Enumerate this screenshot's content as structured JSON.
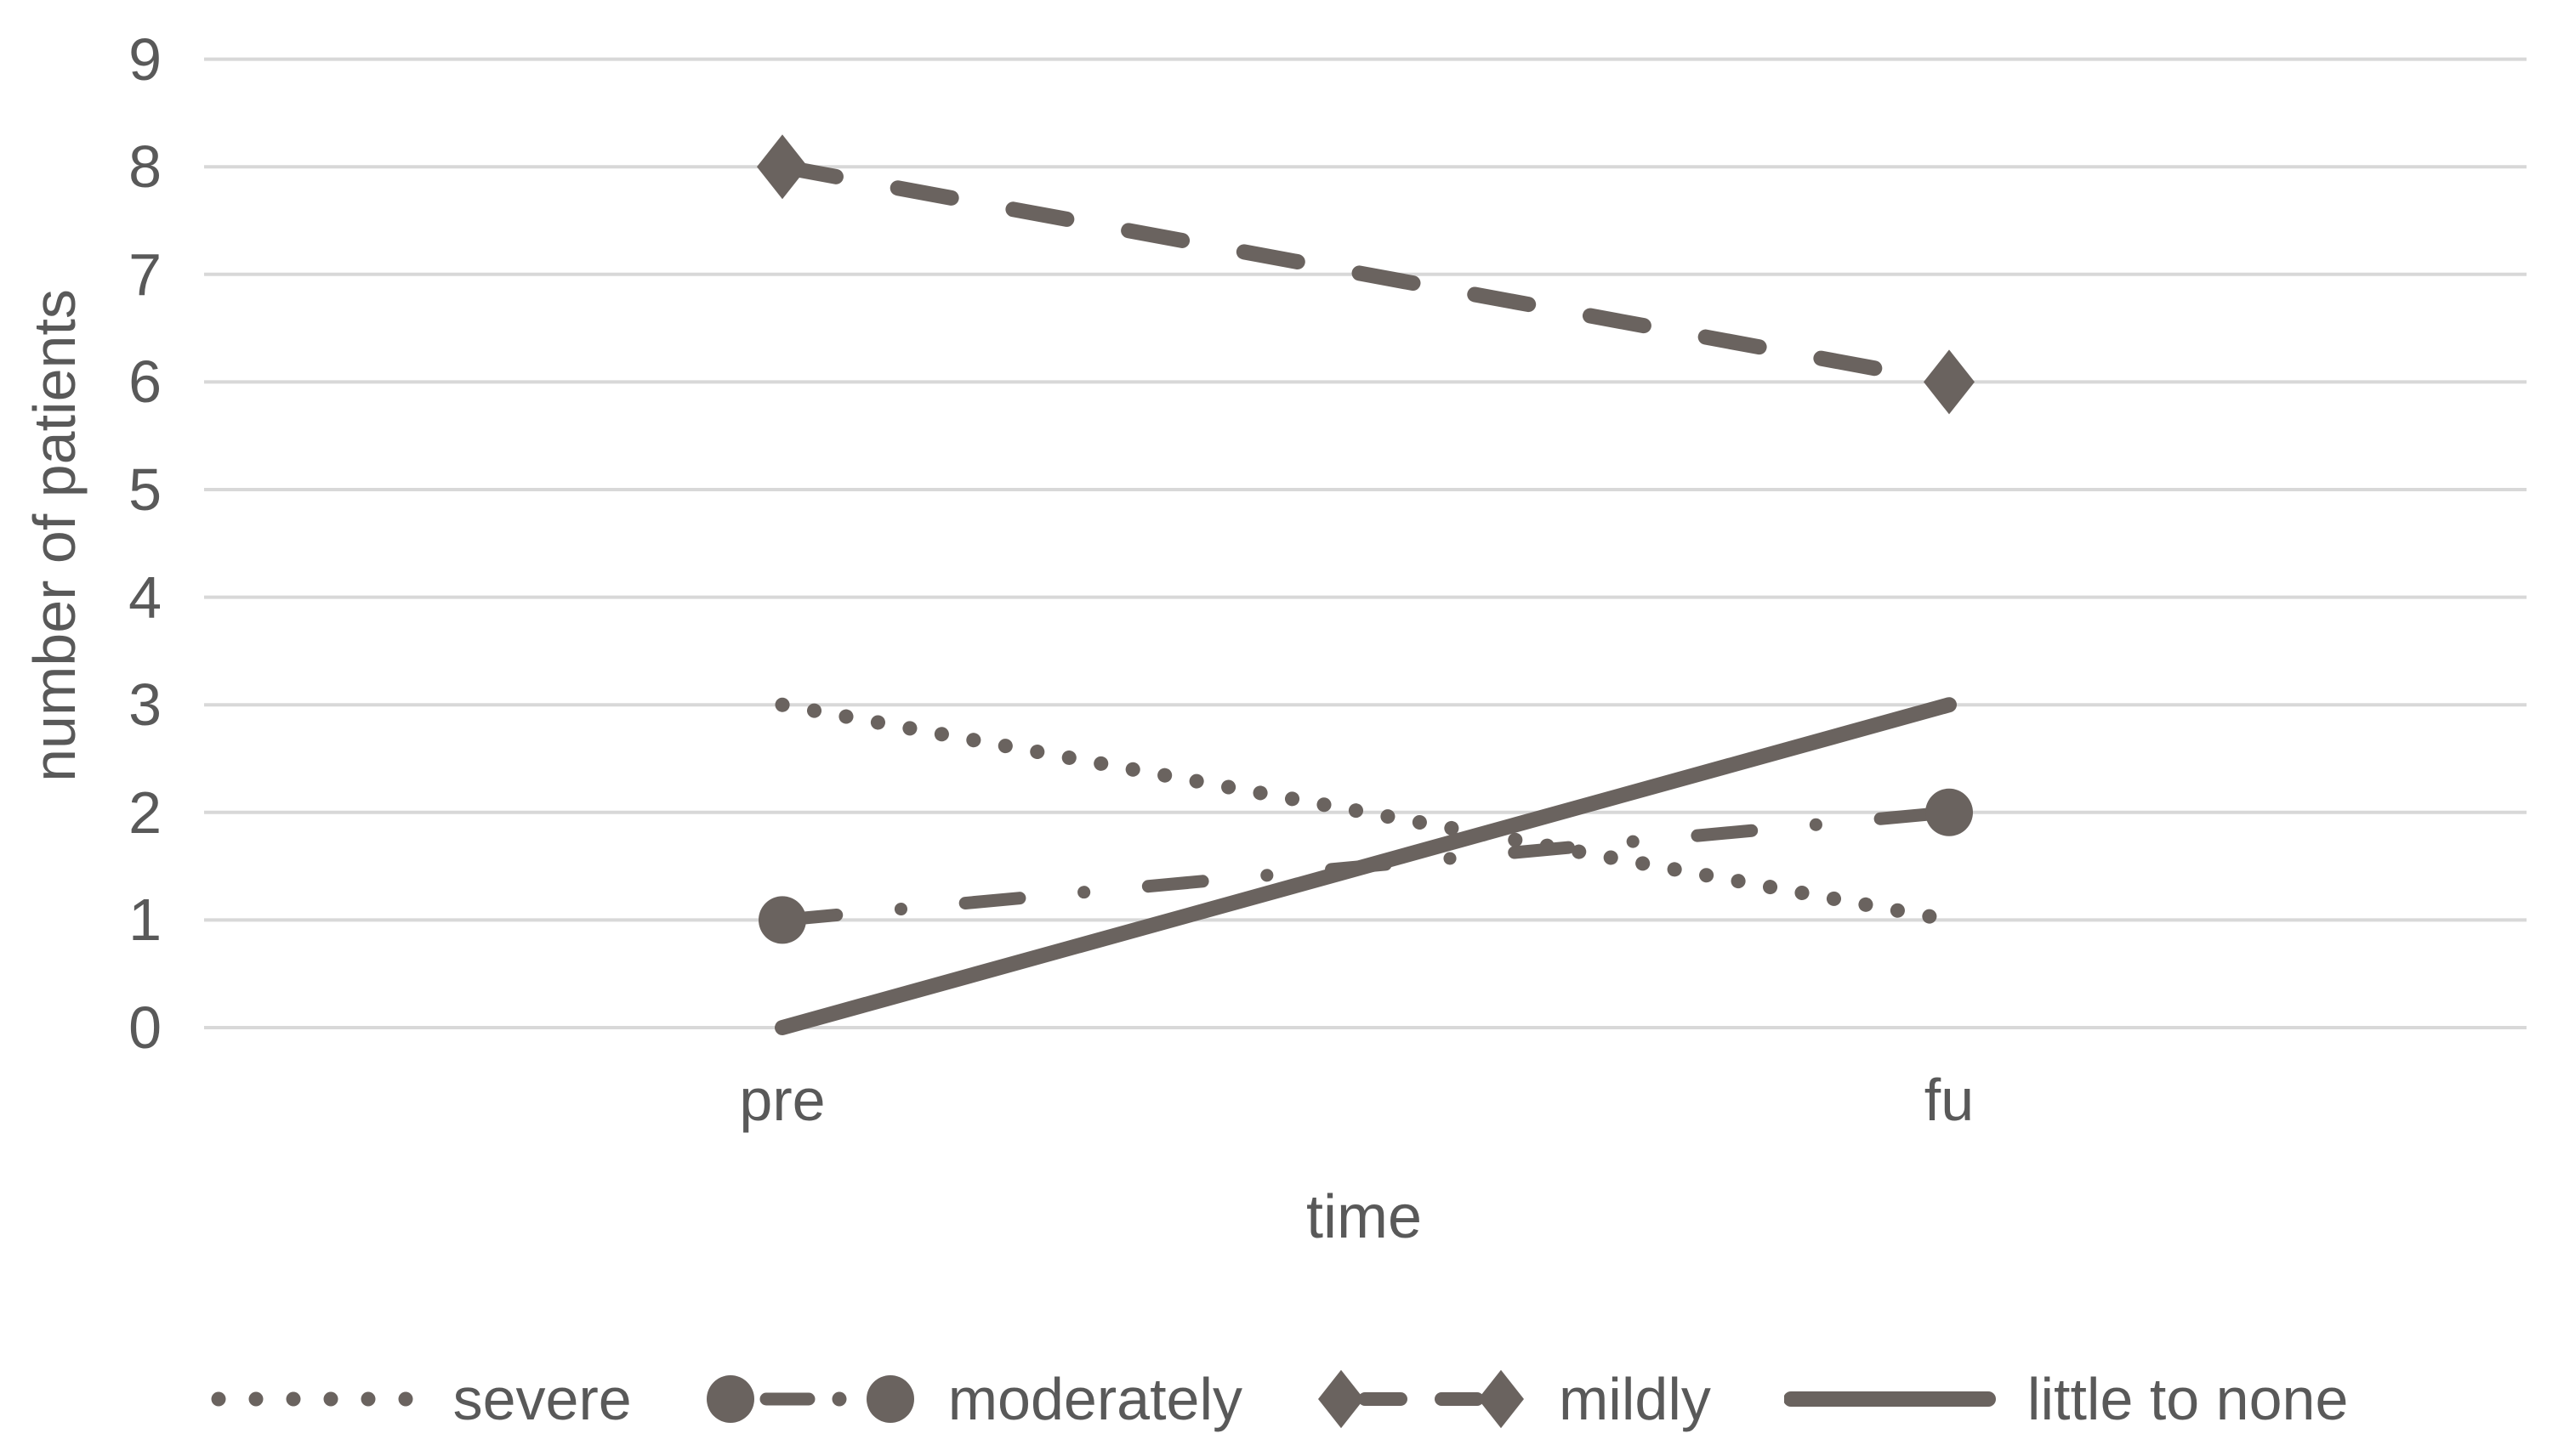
{
  "chart_data": {
    "type": "line",
    "title": "",
    "xlabel": "time",
    "ylabel": "number of patients",
    "categories": [
      "pre",
      "fu"
    ],
    "ylim": [
      0,
      9
    ],
    "yticks": [
      0,
      1,
      2,
      3,
      4,
      5,
      6,
      7,
      8,
      9
    ],
    "grid": "horizontal",
    "legend_position": "bottom",
    "colors": {
      "series": "#6a635f",
      "gridline": "#d8d8d8",
      "text": "#595959"
    },
    "series": [
      {
        "name": "severe",
        "values": [
          3,
          1
        ],
        "line_style": "dotted",
        "marker": "none"
      },
      {
        "name": "moderately",
        "values": [
          1,
          2
        ],
        "line_style": "dash-dot",
        "marker": "circle"
      },
      {
        "name": "mildly",
        "values": [
          8,
          6
        ],
        "line_style": "long-dash",
        "marker": "diamond"
      },
      {
        "name": "little to none",
        "values": [
          0,
          3
        ],
        "line_style": "solid",
        "marker": "none"
      }
    ]
  }
}
